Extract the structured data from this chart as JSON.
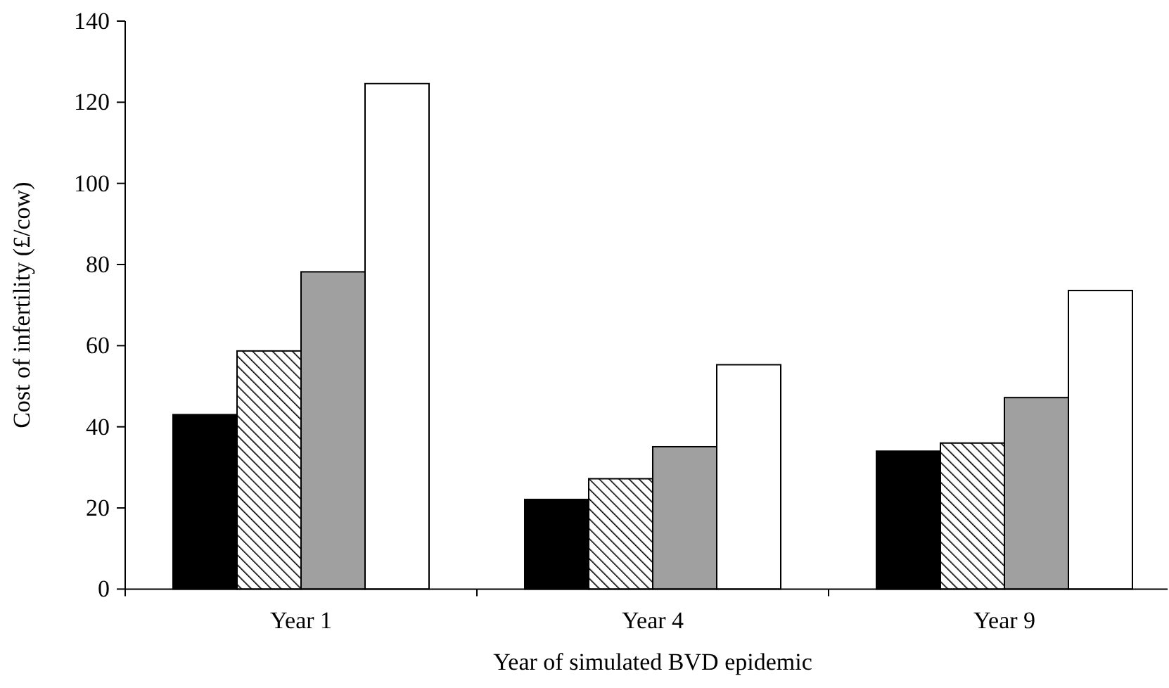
{
  "chart_data": {
    "type": "bar",
    "xlabel": "Year of simulated BVD epidemic",
    "ylabel": "Cost of infertility (£/cow)",
    "categories": [
      "Year 1",
      "Year 4",
      "Year 9"
    ],
    "series": [
      {
        "color": "#000000",
        "values": [
          43.0,
          22.1,
          34.0
        ]
      },
      {
        "color": "#000000",
        "values": [
          58.7,
          27.2,
          36.0
        ]
      },
      {
        "color": "#a0a0a0",
        "values": [
          78.2,
          35.1,
          47.2
        ]
      },
      {
        "color": "#ffffff",
        "values": [
          124.6,
          55.3,
          73.6
        ]
      }
    ],
    "ylim": [
      0,
      140
    ],
    "yticks": [
      0,
      20,
      40,
      60,
      80,
      100,
      120,
      140
    ],
    "grid": false
  }
}
